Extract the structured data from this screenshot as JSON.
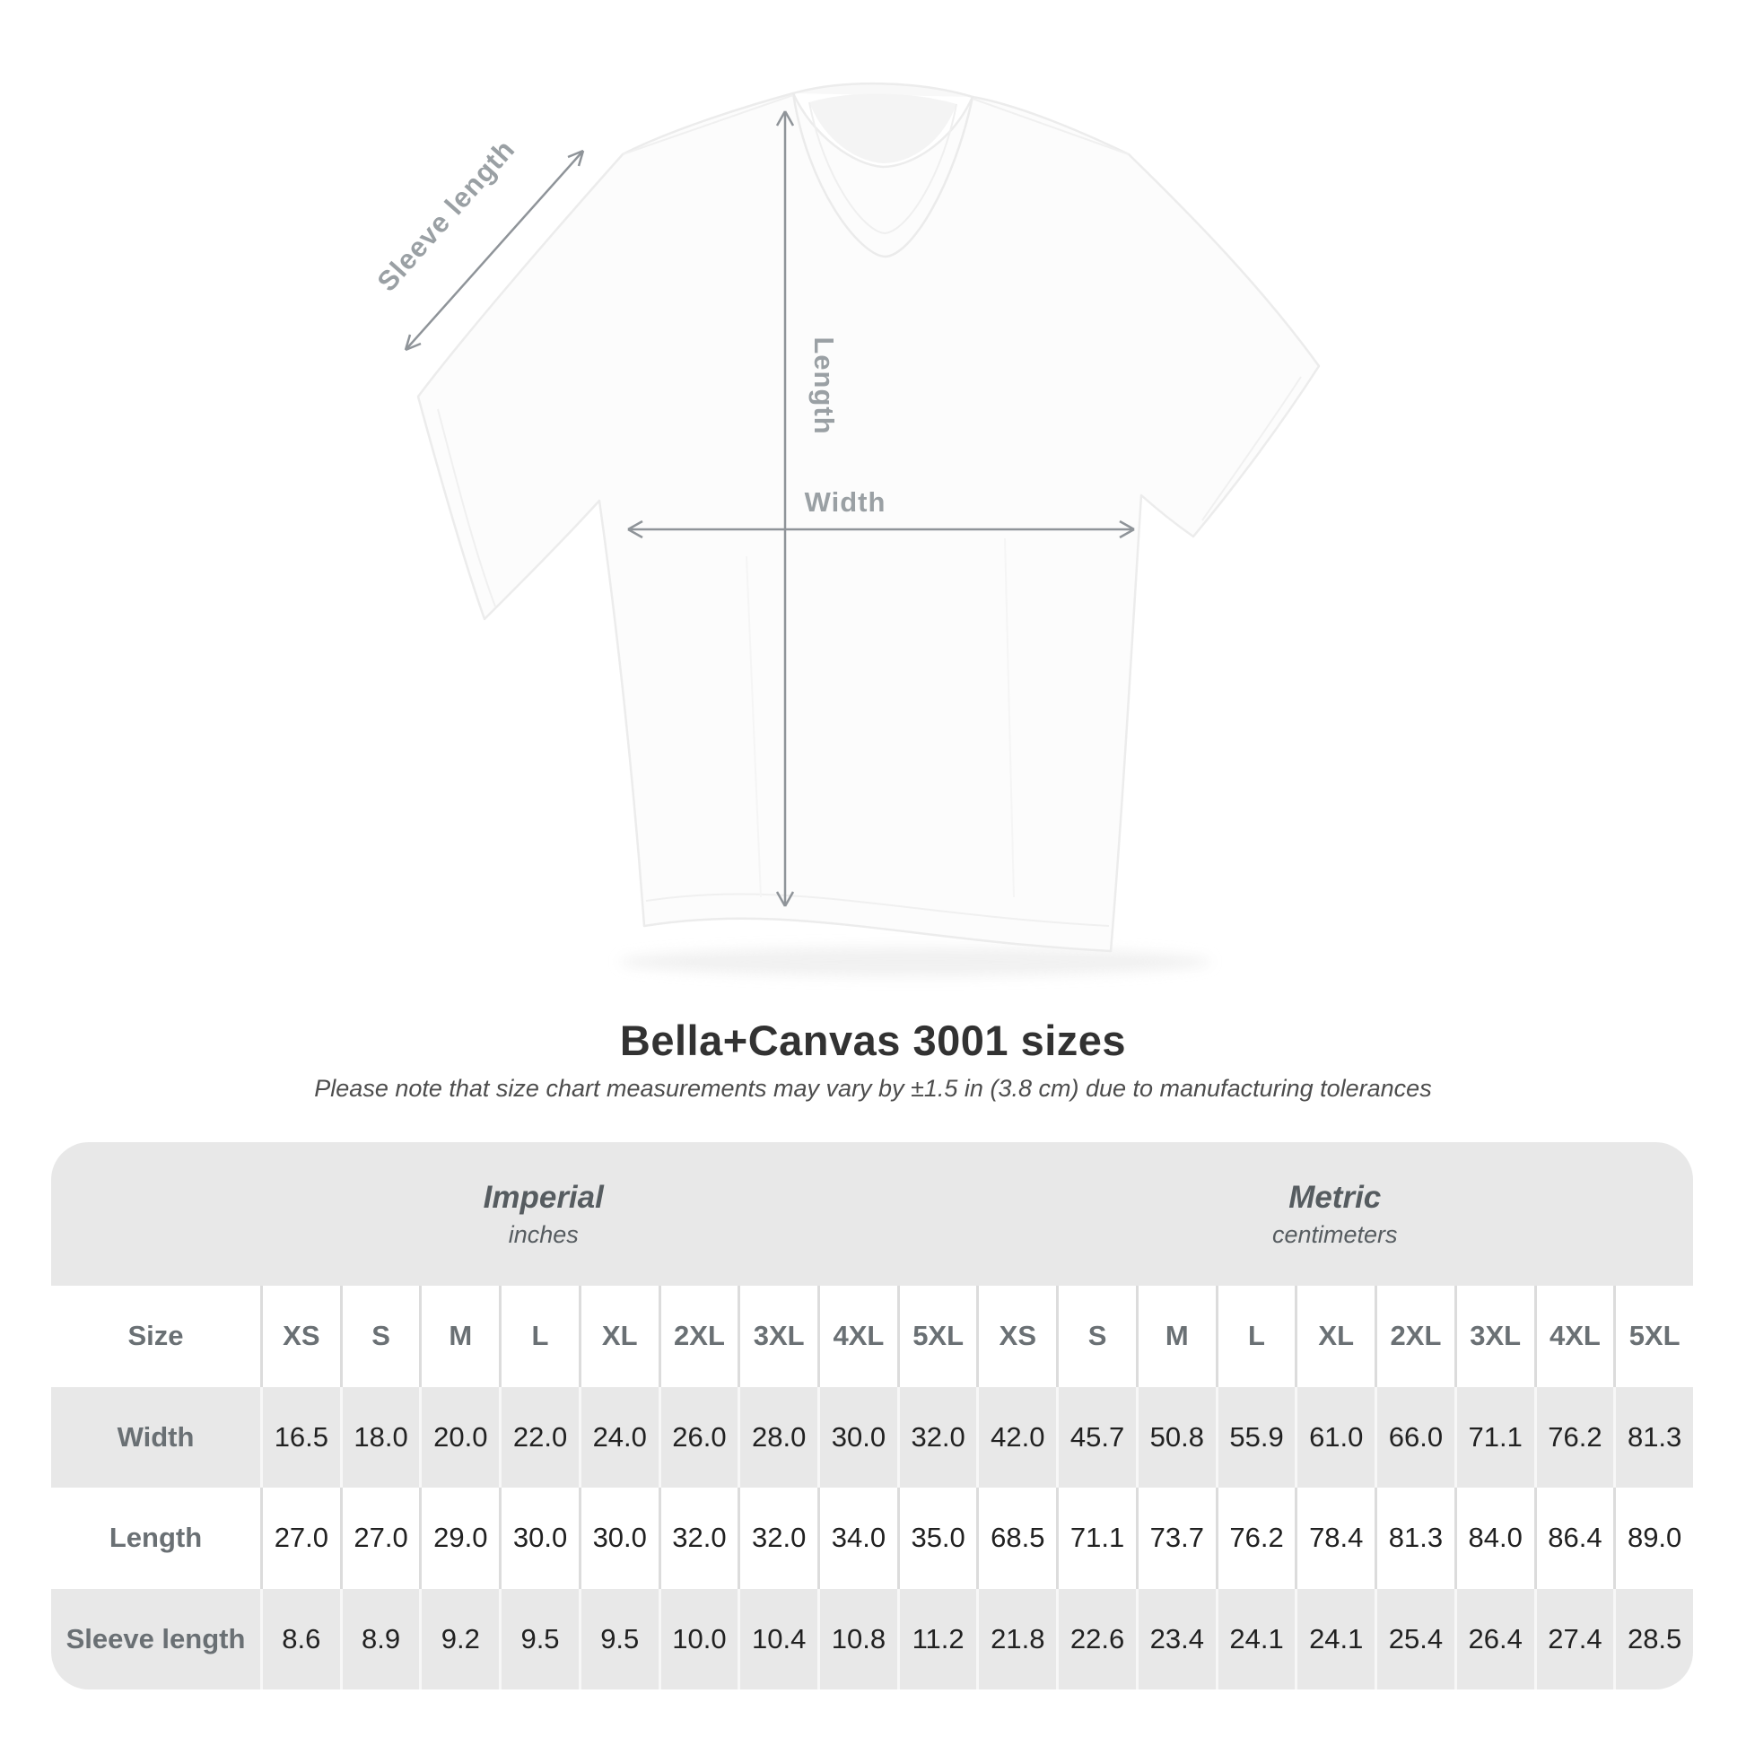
{
  "diagram": {
    "labels": {
      "sleeve": "Sleeve length",
      "length": "Length",
      "width": "Width"
    },
    "arrow_color": "#8f9499",
    "label_color": "#9aa0a4"
  },
  "title": "Bella+Canvas 3001 sizes",
  "subtitle": "Please note that size chart measurements may vary by ±1.5 in (3.8 cm) due to manufacturing tolerances",
  "table": {
    "groups": [
      {
        "label": "Imperial",
        "sublabel": "inches"
      },
      {
        "label": "Metric",
        "sublabel": "centimeters"
      }
    ],
    "size_label": "Size",
    "sizes": [
      "XS",
      "S",
      "M",
      "L",
      "XL",
      "2XL",
      "3XL",
      "4XL",
      "5XL"
    ],
    "rows": [
      {
        "label": "Width",
        "imperial": [
          "16.5",
          "18.0",
          "20.0",
          "22.0",
          "24.0",
          "26.0",
          "28.0",
          "30.0",
          "32.0"
        ],
        "metric": [
          "42.0",
          "45.7",
          "50.8",
          "55.9",
          "61.0",
          "66.0",
          "71.1",
          "76.2",
          "81.3"
        ]
      },
      {
        "label": "Length",
        "imperial": [
          "27.0",
          "27.0",
          "29.0",
          "30.0",
          "30.0",
          "32.0",
          "32.0",
          "34.0",
          "35.0"
        ],
        "metric": [
          "68.5",
          "71.1",
          "73.7",
          "76.2",
          "78.4",
          "81.3",
          "84.0",
          "86.4",
          "89.0"
        ]
      },
      {
        "label": "Sleeve length",
        "imperial": [
          "8.6",
          "8.9",
          "9.2",
          "9.5",
          "9.5",
          "10.0",
          "10.4",
          "10.8",
          "11.2"
        ],
        "metric": [
          "21.8",
          "22.6",
          "23.4",
          "24.1",
          "24.1",
          "25.4",
          "26.4",
          "27.4",
          "28.5"
        ]
      }
    ],
    "colors": {
      "band_gray": "#e8e8e8",
      "separator_on_white": "#dcdcdc",
      "separator_on_gray": "#f7f7f7",
      "label_text": "#6a7074",
      "value_text": "#212121"
    }
  },
  "chart_data": {
    "type": "table",
    "title": "Bella+Canvas 3001 sizes",
    "note": "Please note that size chart measurements may vary by ±1.5 in (3.8 cm) due to manufacturing tolerances",
    "column_groups": [
      "Imperial (inches)",
      "Metric (centimeters)"
    ],
    "columns": [
      "Size",
      "XS",
      "S",
      "M",
      "L",
      "XL",
      "2XL",
      "3XL",
      "4XL",
      "5XL",
      "XS",
      "S",
      "M",
      "L",
      "XL",
      "2XL",
      "3XL",
      "4XL",
      "5XL"
    ],
    "rows": [
      [
        "Width",
        16.5,
        18.0,
        20.0,
        22.0,
        24.0,
        26.0,
        28.0,
        30.0,
        32.0,
        42.0,
        45.7,
        50.8,
        55.9,
        61.0,
        66.0,
        71.1,
        76.2,
        81.3
      ],
      [
        "Length",
        27.0,
        27.0,
        29.0,
        30.0,
        30.0,
        32.0,
        32.0,
        34.0,
        35.0,
        68.5,
        71.1,
        73.7,
        76.2,
        78.4,
        81.3,
        84.0,
        86.4,
        89.0
      ],
      [
        "Sleeve length",
        8.6,
        8.9,
        9.2,
        9.5,
        9.5,
        10.0,
        10.4,
        10.8,
        11.2,
        21.8,
        22.6,
        23.4,
        24.1,
        24.1,
        25.4,
        26.4,
        27.4,
        28.5
      ]
    ]
  }
}
